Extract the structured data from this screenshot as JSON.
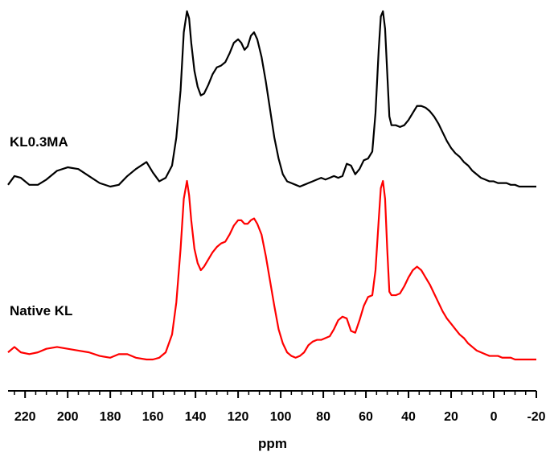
{
  "chart_data": {
    "type": "line",
    "xlabel": "ppm",
    "xlim": [
      228,
      -20
    ],
    "x_reversed": true,
    "y_axis_shown": false,
    "grid": false,
    "legend": "none",
    "x_ticks": [
      220,
      200,
      180,
      160,
      140,
      120,
      100,
      80,
      60,
      40,
      20,
      0,
      -20
    ],
    "x_tick_labels": [
      "220",
      "200",
      "180",
      "160",
      "140",
      "120",
      "100",
      "80",
      "60",
      "40",
      "20",
      "0",
      "-20"
    ],
    "series": [
      {
        "name": "KL0.3MA",
        "color": "#000000",
        "offset": 1.0,
        "x": [
          228,
          225,
          222,
          218,
          214,
          210,
          205,
          200,
          195,
          190,
          185,
          180,
          176,
          172,
          168,
          163,
          160,
          157,
          154,
          151,
          149,
          147,
          145.5,
          144,
          143,
          142,
          140.5,
          139,
          137.5,
          136,
          134,
          132,
          130,
          128,
          126,
          124,
          122,
          120,
          118.5,
          117,
          115.5,
          114,
          112.5,
          111,
          109,
          107,
          105,
          103,
          101,
          99,
          97,
          95,
          93,
          91,
          89,
          87,
          85,
          83,
          81,
          79,
          77,
          75,
          73,
          71,
          69,
          67,
          65,
          63,
          61,
          59,
          57,
          55.5,
          54,
          53,
          52,
          51,
          50,
          49,
          48,
          47,
          46,
          44,
          42,
          40,
          38,
          36,
          34,
          32,
          30,
          28,
          26,
          24,
          22,
          20,
          18,
          16,
          14,
          12,
          10,
          8,
          6,
          4,
          2,
          0,
          -2,
          -4,
          -6,
          -8,
          -10,
          -12,
          -14,
          -16,
          -18,
          -20
        ],
        "y": [
          0.01,
          0.06,
          0.05,
          0.01,
          0.01,
          0.04,
          0.09,
          0.11,
          0.1,
          0.06,
          0.02,
          0.0,
          0.01,
          0.06,
          0.1,
          0.14,
          0.08,
          0.03,
          0.05,
          0.12,
          0.28,
          0.55,
          0.88,
          1.0,
          0.96,
          0.82,
          0.66,
          0.57,
          0.52,
          0.53,
          0.58,
          0.64,
          0.68,
          0.69,
          0.71,
          0.76,
          0.82,
          0.84,
          0.82,
          0.78,
          0.8,
          0.86,
          0.88,
          0.84,
          0.74,
          0.6,
          0.44,
          0.28,
          0.16,
          0.07,
          0.03,
          0.02,
          0.01,
          0.0,
          0.01,
          0.02,
          0.03,
          0.04,
          0.05,
          0.04,
          0.05,
          0.06,
          0.05,
          0.06,
          0.13,
          0.12,
          0.07,
          0.1,
          0.15,
          0.16,
          0.2,
          0.42,
          0.78,
          0.97,
          1.0,
          0.9,
          0.65,
          0.4,
          0.35,
          0.35,
          0.35,
          0.34,
          0.35,
          0.38,
          0.42,
          0.46,
          0.46,
          0.45,
          0.43,
          0.4,
          0.36,
          0.31,
          0.26,
          0.22,
          0.19,
          0.17,
          0.14,
          0.12,
          0.09,
          0.07,
          0.05,
          0.04,
          0.03,
          0.03,
          0.02,
          0.02,
          0.02,
          0.01,
          0.01,
          0.0,
          0.0,
          0.0,
          0.0,
          0.0
        ]
      },
      {
        "name": "Native KL",
        "color": "#ff0000",
        "offset": 0.0,
        "x": [
          228,
          225,
          222,
          218,
          214,
          210,
          205,
          200,
          195,
          190,
          185,
          180,
          176,
          172,
          168,
          163,
          160,
          157,
          154,
          151,
          149,
          147,
          145.5,
          144,
          143,
          142,
          140.5,
          139,
          137.5,
          136,
          134,
          132,
          130,
          128,
          126,
          124,
          122,
          120,
          118.5,
          117,
          115.5,
          114,
          112.5,
          111,
          109,
          107,
          105,
          103,
          101,
          99,
          97,
          95,
          93,
          91,
          89,
          87,
          85,
          83,
          81,
          79,
          77,
          75,
          73,
          71,
          69,
          67,
          65,
          63,
          61,
          59,
          57,
          55.5,
          54,
          53,
          52,
          51,
          50,
          49,
          48,
          47,
          46,
          44,
          42,
          40,
          38,
          36,
          34,
          32,
          30,
          28,
          26,
          24,
          22,
          20,
          18,
          16,
          14,
          12,
          10,
          8,
          6,
          4,
          2,
          0,
          -2,
          -4,
          -6,
          -8,
          -10,
          -12,
          -14,
          -16,
          -18,
          -20
        ],
        "y": [
          0.04,
          0.07,
          0.04,
          0.03,
          0.04,
          0.06,
          0.07,
          0.06,
          0.05,
          0.04,
          0.02,
          0.01,
          0.03,
          0.03,
          0.01,
          0.0,
          0.0,
          0.01,
          0.04,
          0.14,
          0.32,
          0.62,
          0.9,
          1.0,
          0.92,
          0.78,
          0.62,
          0.54,
          0.5,
          0.52,
          0.56,
          0.6,
          0.63,
          0.65,
          0.66,
          0.7,
          0.75,
          0.78,
          0.78,
          0.76,
          0.76,
          0.78,
          0.79,
          0.76,
          0.7,
          0.58,
          0.44,
          0.3,
          0.17,
          0.09,
          0.04,
          0.02,
          0.01,
          0.02,
          0.04,
          0.08,
          0.1,
          0.11,
          0.11,
          0.12,
          0.13,
          0.17,
          0.22,
          0.24,
          0.23,
          0.16,
          0.15,
          0.22,
          0.3,
          0.35,
          0.36,
          0.5,
          0.78,
          0.96,
          1.0,
          0.9,
          0.62,
          0.38,
          0.36,
          0.36,
          0.36,
          0.37,
          0.41,
          0.46,
          0.5,
          0.52,
          0.5,
          0.46,
          0.42,
          0.37,
          0.32,
          0.27,
          0.23,
          0.2,
          0.17,
          0.14,
          0.12,
          0.09,
          0.07,
          0.05,
          0.04,
          0.03,
          0.02,
          0.02,
          0.02,
          0.01,
          0.01,
          0.01,
          0.0,
          0.0,
          0.0,
          0.0,
          0.0,
          0.0
        ]
      }
    ]
  }
}
